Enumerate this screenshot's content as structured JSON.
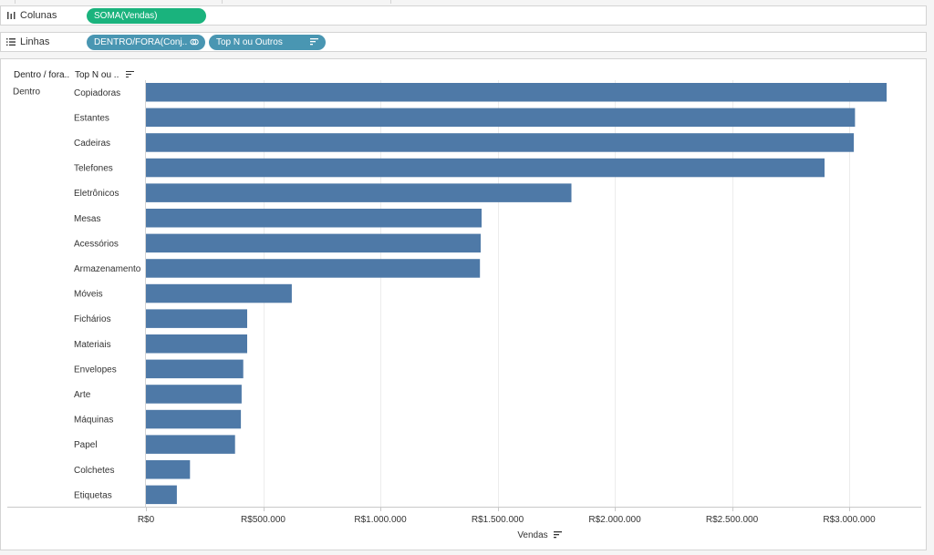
{
  "shelves": {
    "columns": {
      "label": "Colunas",
      "pills": [
        "SOMA(Vendas)"
      ]
    },
    "rows": {
      "label": "Linhas",
      "pills": [
        "DENTRO/FORA(Conj..",
        "Top N ou Outros"
      ]
    }
  },
  "headers": {
    "col1": "Dentro / fora..",
    "col2": "Top N ou .."
  },
  "chart_data": {
    "type": "bar",
    "orientation": "horizontal",
    "group": "Dentro",
    "categories": [
      "Copiadoras",
      "Estantes",
      "Cadeiras",
      "Telefones",
      "Eletrônicos",
      "Mesas",
      "Acessórios",
      "Armazenamento",
      "Móveis",
      "Fichários",
      "Materiais",
      "Envelopes",
      "Arte",
      "Máquinas",
      "Papel",
      "Colchetes",
      "Etiquetas"
    ],
    "values": [
      3160000,
      3025000,
      3020000,
      2895000,
      1815000,
      1432000,
      1428000,
      1425000,
      622000,
      432000,
      432000,
      415000,
      408000,
      405000,
      380000,
      188000,
      132000
    ],
    "xlabel": "Vendas",
    "xlim": [
      0,
      3250000
    ],
    "xticks": [
      0,
      500000,
      1000000,
      1500000,
      2000000,
      2500000,
      3000000
    ],
    "xtick_labels": [
      "R$0",
      "R$500.000",
      "R$1.000.000",
      "R$1.500.000",
      "R$2.000.000",
      "R$2.500.000",
      "R$3.000.000"
    ],
    "bar_color": "#4e79a7",
    "grid": true
  }
}
